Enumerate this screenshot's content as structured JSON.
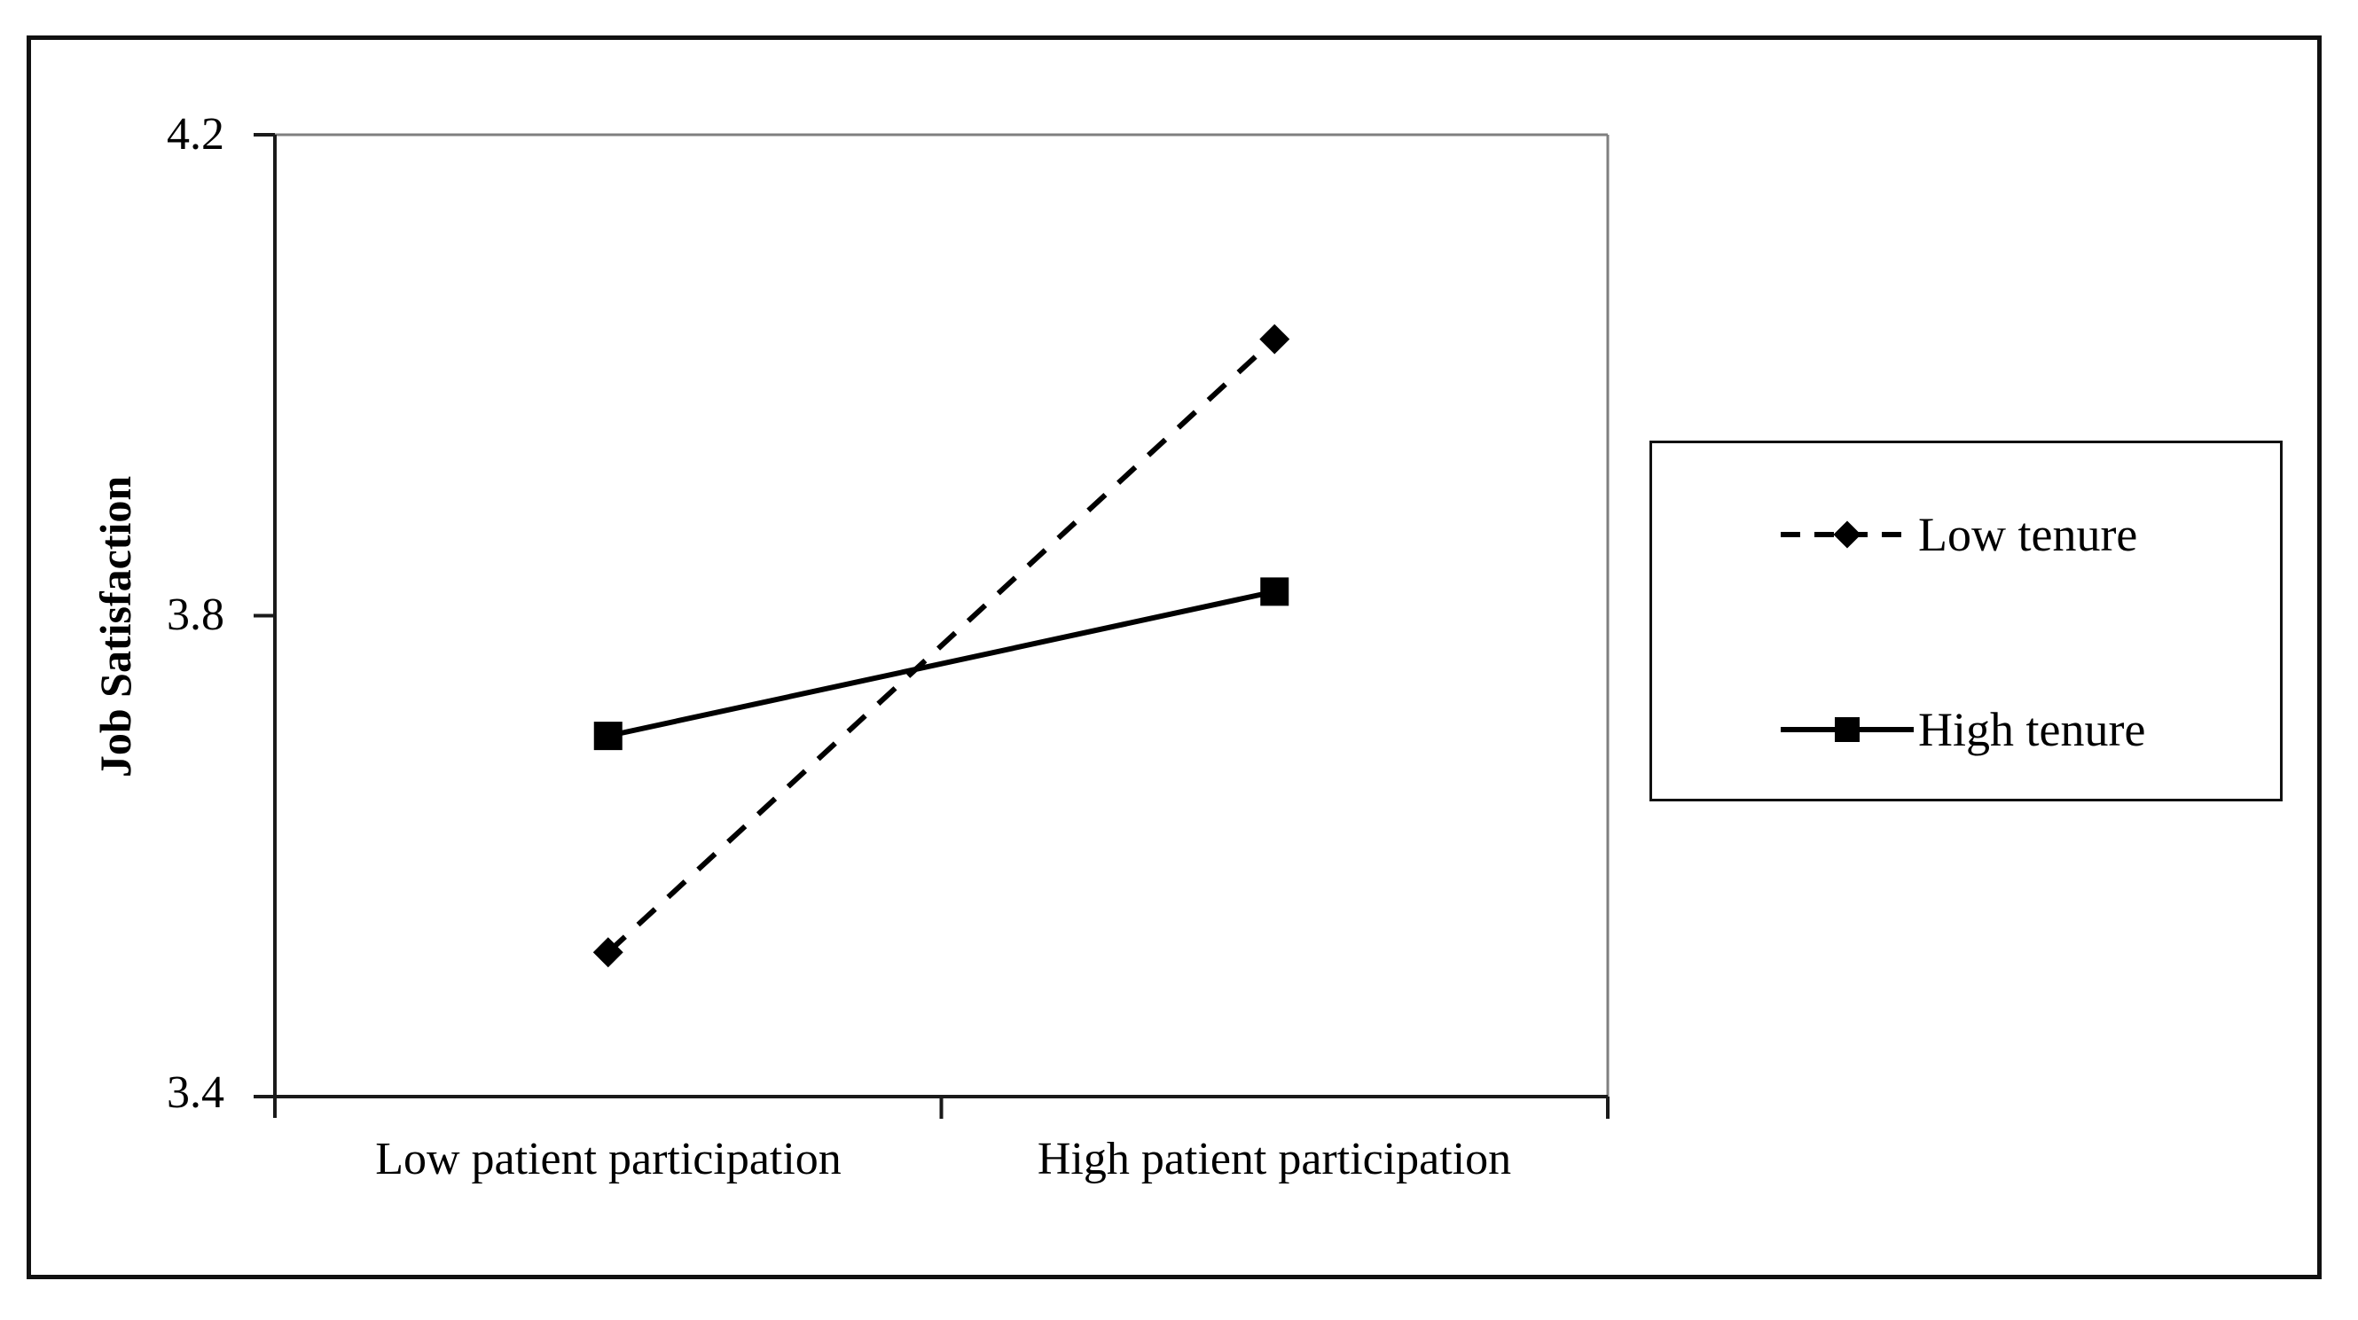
{
  "figure": {
    "background_color": "#ffffff",
    "border_color": "#111111",
    "frame_gray": "#7f7f7f",
    "axis_black": "#1a1a1a"
  },
  "axis": {
    "ytitle": "Job Satisfaction",
    "yticks": [
      "4.2",
      "3.8",
      "3.4"
    ],
    "categories": [
      "Low patient participation",
      "High patient participation"
    ]
  },
  "legend": {
    "items": [
      {
        "label": "Low tenure"
      },
      {
        "label": "High tenure"
      }
    ]
  },
  "chart_data": {
    "type": "line",
    "categories": [
      "Low patient participation",
      "High patient participation"
    ],
    "series": [
      {
        "name": "Low tenure",
        "values": [
          3.52,
          4.03
        ],
        "line_style": "dashed",
        "marker": "diamond",
        "color": "#000000"
      },
      {
        "name": "High tenure",
        "values": [
          3.7,
          3.82
        ],
        "line_style": "solid",
        "marker": "square",
        "color": "#000000"
      }
    ],
    "title": "",
    "xlabel": "",
    "ylabel": "Job Satisfaction",
    "ylim": [
      3.4,
      4.2
    ],
    "yticks": [
      4.2,
      3.8,
      3.4
    ],
    "grid": false,
    "legend_position": "right-outside"
  }
}
